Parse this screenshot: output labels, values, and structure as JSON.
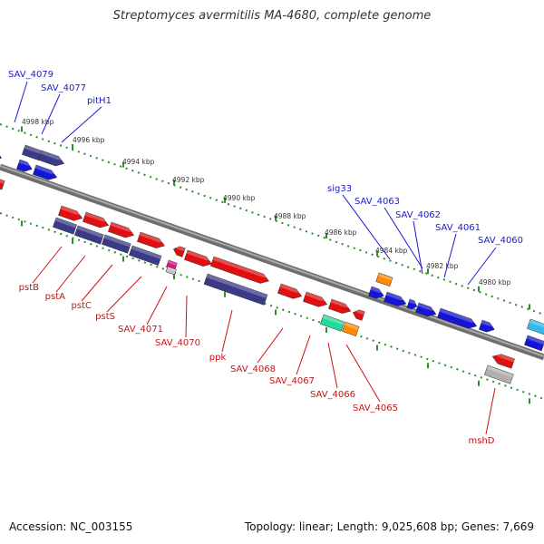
{
  "title": "Streptomyces avermitilis MA-4680, complete genome",
  "footer": {
    "accession": "Accession: NC_003155",
    "topology": "Topology: linear; Length: 9,025,608 bp; Genes: 7,669"
  },
  "colors": {
    "top_strand_label": "#1a1ad0",
    "bottom_strand_label": "#cc1111",
    "backbone": "#8c8c8c",
    "tick_green": "#2e8b2e"
  },
  "ticks": [
    "4998 kbp",
    "4996 kbp",
    "4994 kbp",
    "4992 kbp",
    "4990 kbp",
    "4988 kbp",
    "4986 kbp",
    "4984 kbp",
    "4982 kbp",
    "4980 kbp"
  ],
  "top_genes": [
    "SAV_4079",
    "SAV_4077",
    "pitH1",
    "sig33",
    "SAV_4063",
    "SAV_4062",
    "SAV_4061",
    "SAV_4060"
  ],
  "bottom_genes": [
    "pstB",
    "pstA",
    "pstC",
    "pstS",
    "SAV_4071",
    "SAV_4070",
    "ppk",
    "SAV_4068",
    "SAV_4067",
    "SAV_4066",
    "SAV_4065",
    "mshD"
  ]
}
